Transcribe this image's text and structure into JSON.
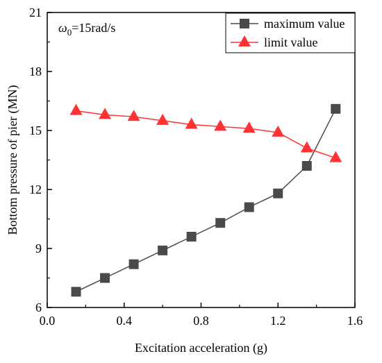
{
  "chart_data": {
    "type": "line",
    "xlabel": "Excitation acceleration (g)",
    "ylabel": "Bottom pressure of pier (MN)",
    "xlim": [
      0.0,
      1.6
    ],
    "ylim": [
      6,
      21
    ],
    "xticks": [
      0.0,
      0.4,
      0.8,
      1.2,
      1.6
    ],
    "yticks": [
      6,
      9,
      12,
      15,
      18,
      21
    ],
    "xtick_labels": [
      "0.0",
      "0.4",
      "0.8",
      "1.2",
      "1.6"
    ],
    "ytick_labels": [
      "6",
      "9",
      "12",
      "15",
      "18",
      "21"
    ],
    "grid": false,
    "legend_position": "top-right",
    "annotation": {
      "symbol": "ω",
      "subscript": "0",
      "text": "=15rad/s"
    },
    "x": [
      0.15,
      0.3,
      0.45,
      0.6,
      0.75,
      0.9,
      1.05,
      1.2,
      1.35,
      1.5
    ],
    "series": [
      {
        "name": "maximum value",
        "marker": "square",
        "color": "#4a4a4a",
        "values": [
          6.8,
          7.5,
          8.2,
          8.9,
          9.6,
          10.3,
          11.1,
          11.8,
          13.2,
          16.1
        ]
      },
      {
        "name": "limit value",
        "marker": "triangle",
        "color": "#ff3333",
        "values": [
          16.0,
          15.8,
          15.7,
          15.5,
          15.3,
          15.2,
          15.1,
          14.9,
          14.1,
          13.6
        ]
      }
    ]
  }
}
